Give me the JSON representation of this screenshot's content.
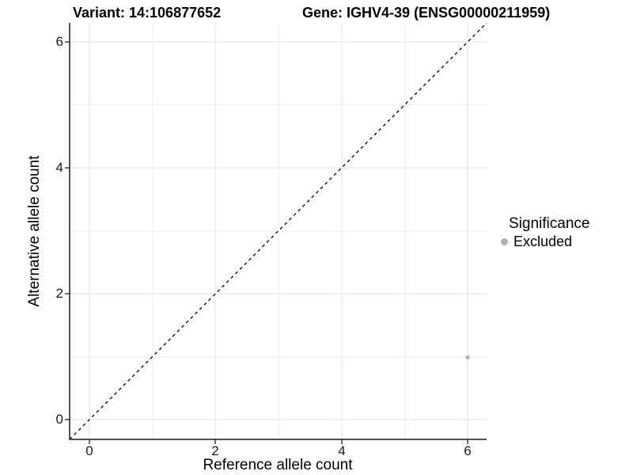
{
  "chart_data": {
    "type": "scatter",
    "title_left": "Variant: 14:106877652",
    "title_right": "Gene: IGHV4-39 (ENSG00000211959)",
    "xlabel": "Reference allele count",
    "ylabel": "Alternative allele count",
    "x_ticks": [
      "0",
      "2",
      "4",
      "6"
    ],
    "y_ticks": [
      "0",
      "2",
      "4",
      "6"
    ],
    "xlim": [
      -0.3,
      6.3
    ],
    "ylim": [
      -0.3,
      6.3
    ],
    "grid": "major and minor, light gray on white",
    "reference_line": {
      "type": "identity y=x",
      "style": "dashed",
      "color": "#000000",
      "from": [
        -0.3,
        -0.3
      ],
      "to": [
        6.3,
        6.3
      ]
    },
    "series": [
      {
        "name": "Excluded",
        "color": "#b3b3b3",
        "points": [
          {
            "x": 6,
            "y": 1
          }
        ]
      }
    ],
    "legend": {
      "title": "Significance",
      "position": "right",
      "items": [
        {
          "label": "Excluded",
          "color": "#b3b3b3"
        }
      ]
    }
  },
  "colors": {
    "point_gray": "#b3b3b3",
    "grid_major": "#e2e2e2",
    "grid_minor": "#eeeeee",
    "axis_line": "#3a3a3a",
    "tick_text": "#1a1a1a"
  }
}
